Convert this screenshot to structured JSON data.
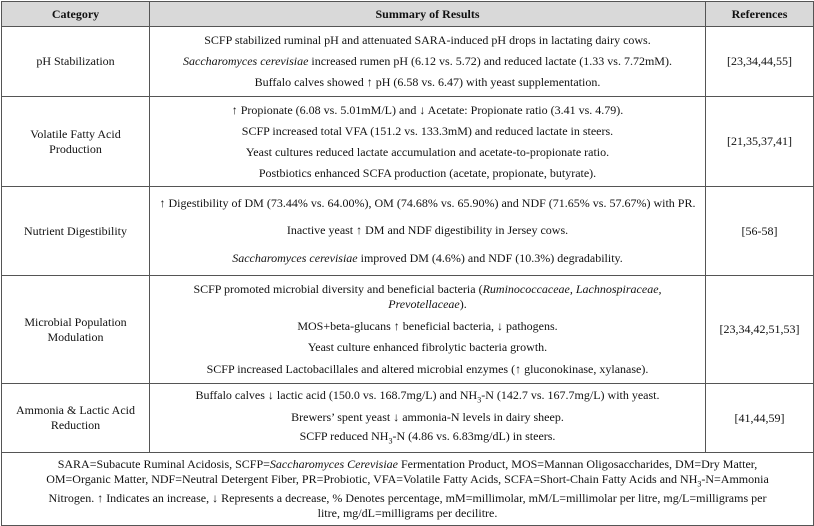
{
  "table": {
    "header": [
      "Category",
      "Summary of Results",
      "References"
    ],
    "rows": [
      {
        "category": "pH Stabilization",
        "summary": [
          [
            {
              "text": "SCFP stabilized ruminal pH and attenuated SARA-induced pH drops in lactating dairy cows."
            }
          ],
          [
            {
              "text": "Saccharomyces cerevisiae",
              "style": "italic"
            },
            {
              "text": " increased rumen pH (6.12 vs. 5.72) and reduced lactate (1.33 vs. 7.72mM)."
            }
          ],
          [
            {
              "text": "Buffalo calves showed ↑ pH (6.58 vs. 6.47) with yeast supplementation."
            }
          ]
        ],
        "references": "[23,34,44,55]"
      },
      {
        "category": "Volatile Fatty Acid Production",
        "summary": [
          [
            {
              "text": "↑ Propionate (6.08 vs. 5.01mM/L) and ↓ Acetate: Propionate ratio (3.41 vs. 4.79)."
            }
          ],
          [
            {
              "text": "SCFP increased total VFA (151.2 vs. 133.3mM) and reduced lactate in steers."
            }
          ],
          [
            {
              "text": "Yeast cultures reduced lactate accumulation and acetate-to-propionate ratio."
            }
          ],
          [
            {
              "text": "Postbiotics enhanced SCFA production (acetate, propionate, butyrate)."
            }
          ]
        ],
        "references": "[21,35,37,41]"
      },
      {
        "category": "Nutrient Digestibility",
        "summary": [
          [
            {
              "text": "↑ Digestibility of DM (73.44% vs. 64.00%), OM (74.68% vs. 65.90%) and NDF (71.65% vs. 57.67%) with PR."
            }
          ],
          [
            {
              "text": "Inactive yeast ↑ DM and NDF digestibility in Jersey cows."
            }
          ],
          [
            {
              "text": "Saccharomyces cerevisiae",
              "style": "italic"
            },
            {
              "text": " improved DM (4.6%) and NDF (10.3%) degradability."
            }
          ]
        ],
        "references": "[56-58]"
      },
      {
        "category": "Microbial Population Modulation",
        "summary": [
          [
            {
              "text": "SCFP promoted microbial diversity and beneficial bacteria ("
            },
            {
              "text": "Ruminococcaceae, Lachnospiraceae, Prevotellaceae",
              "style": "italic"
            },
            {
              "text": ")."
            }
          ],
          [
            {
              "text": "MOS+beta-glucans ↑ beneficial bacteria, ↓ pathogens."
            }
          ],
          [
            {
              "text": "Yeast culture enhanced fibrolytic bacteria growth."
            }
          ],
          [
            {
              "text": "SCFP increased Lactobacillales and altered microbial enzymes (↑ gluconokinase, xylanase)."
            }
          ]
        ],
        "references": "[23,34,42,51,53]"
      },
      {
        "category": "Ammonia & Lactic Acid Reduction",
        "summary": [
          [
            {
              "text": "Buffalo calves ↓ lactic acid (150.0 vs. 168.7mg/L) and NH"
            },
            {
              "text": "3",
              "style": "sub"
            },
            {
              "text": "-N (142.7 vs. 167.7mg/L) with yeast."
            }
          ],
          [
            {
              "text": "Brewers’ spent yeast ↓ ammonia-N levels in dairy sheep."
            }
          ],
          [
            {
              "text": "SCFP reduced NH"
            },
            {
              "text": "3",
              "style": "sub"
            },
            {
              "text": "-N (4.86 vs. 6.83mg/dL) in steers."
            }
          ]
        ],
        "references": "[41,44,59]"
      }
    ],
    "footnote": [
      {
        "text": "SARA=Subacute Ruminal Acidosis, SCFP="
      },
      {
        "text": "Saccharomyces Cerevisiae",
        "style": "italic"
      },
      {
        "text": " Fermentation Product, MOS=Mannan Oligosaccharides, DM=Dry Matter, OM=Organic Matter, NDF=Neutral Detergent Fiber, PR=Probiotic, VFA=Volatile Fatty Acids, SCFA=Short-Chain Fatty Acids and NH"
      },
      {
        "text": "3",
        "style": "sub"
      },
      {
        "text": "-N=Ammonia Nitrogen. ↑ Indicates an increase, ↓ Represents a decrease, % Denotes percentage, mM=millimolar, mM/L=millimolar per litre, mg/L=milligrams per litre, mg/dL=milligrams per decilitre."
      }
    ]
  }
}
